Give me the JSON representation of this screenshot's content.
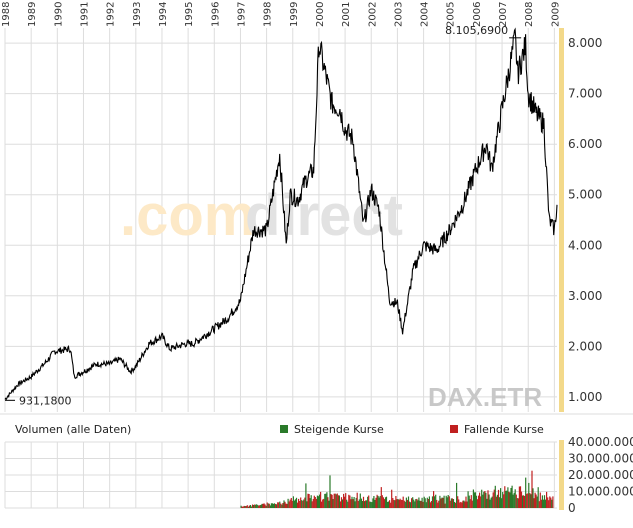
{
  "colors": {
    "price_line": "#000000",
    "grid": "#dddddd",
    "highlight_bar": "#f3d98a",
    "rising": "#2a7a2a",
    "falling": "#c02020",
    "watermark_orange": "#fde9c7",
    "watermark_grey": "#e2e2e2",
    "ticker_text": "#c8c8c8"
  },
  "watermark": {
    "part1": ".com",
    "part2": "direct"
  },
  "ticker": "DAX.ETR",
  "annotations": {
    "max_label": "8.105,6900",
    "min_label": "931,1800"
  },
  "volume_panel": {
    "title": "Volumen (alle Daten)",
    "legend_rising": "Steigende Kurse",
    "legend_falling": "Fallende Kurse"
  },
  "chart_data": [
    {
      "type": "line",
      "x_ticks": [
        "1988",
        "1989",
        "1990",
        "1991",
        "1992",
        "1993",
        "1994",
        "1995",
        "1996",
        "1997",
        "1998",
        "1999",
        "2000",
        "2001",
        "2002",
        "2003",
        "2004",
        "2005",
        "2006",
        "2007",
        "2008",
        "2009"
      ],
      "y_ticks": [
        "1.000",
        "2.000",
        "3.000",
        "4.000",
        "5.000",
        "6.000",
        "7.000",
        "8.000"
      ],
      "ylim": [
        700,
        8300
      ],
      "xlim": [
        1988.0,
        2009.1
      ],
      "grid": true,
      "series": [
        {
          "x": [
            1988.0,
            1988.5,
            1989.0,
            1989.5,
            1989.9,
            1990.5,
            1990.65,
            1991.0,
            1991.5,
            1992.0,
            1992.4,
            1992.8,
            1993.0,
            1993.5,
            1994.0,
            1994.3,
            1994.9,
            1995.2,
            1995.6,
            1996.0,
            1996.5,
            1997.0,
            1997.5,
            1998.0,
            1998.5,
            1998.75,
            1998.9,
            1999.2,
            1999.5,
            1999.8,
            2000.0,
            2000.2,
            2000.5,
            2000.8,
            2001.0,
            2001.3,
            2001.7,
            2002.0,
            2002.3,
            2002.7,
            2003.0,
            2003.2,
            2003.6,
            2004.0,
            2004.5,
            2005.0,
            2005.5,
            2006.0,
            2006.4,
            2006.6,
            2007.0,
            2007.5,
            2007.6,
            2007.9,
            2008.0,
            2008.3,
            2008.6,
            2008.8,
            2009.0,
            2009.1
          ],
          "y": [
            950,
            1250,
            1400,
            1650,
            1900,
            1950,
            1400,
            1500,
            1650,
            1650,
            1750,
            1500,
            1600,
            2050,
            2200,
            1950,
            2050,
            2050,
            2200,
            2350,
            2550,
            2900,
            4300,
            4300,
            5800,
            4000,
            5000,
            4900,
            5300,
            5500,
            8000,
            7500,
            6800,
            6700,
            6300,
            6100,
            4400,
            5100,
            4700,
            2900,
            2850,
            2300,
            3500,
            4000,
            3900,
            4300,
            4800,
            5500,
            6000,
            5500,
            6700,
            8100,
            7400,
            7950,
            7000,
            6600,
            6400,
            4500,
            4300,
            4800
          ]
        }
      ]
    },
    {
      "type": "bar",
      "title": "Volumen (alle Daten)",
      "y_ticks": [
        "0",
        "10.000.000",
        "20.000.000",
        "30.000.000",
        "40.000.000"
      ],
      "ylim": [
        0,
        40000000
      ],
      "series": [
        {
          "name": "Steigende Kurse",
          "x": [
            1997.0,
            1998.5,
            1999.0,
            1999.5,
            2000.0,
            2001.0,
            2002.0,
            2003.0,
            2004.0,
            2005.0,
            2006.0,
            2007.0,
            2008.0,
            2008.8
          ],
          "values": [
            1000000,
            3000000,
            6000000,
            7000000,
            8000000,
            7000000,
            6000000,
            5000000,
            5000000,
            6000000,
            8000000,
            10000000,
            11000000,
            6000000
          ]
        },
        {
          "name": "Fallende Kurse",
          "x": [
            1997.0,
            1998.5,
            1999.0,
            1999.5,
            2000.0,
            2001.0,
            2002.0,
            2003.0,
            2004.0,
            2005.0,
            2006.0,
            2007.0,
            2008.0,
            2008.8
          ],
          "values": [
            1000000,
            3000000,
            5000000,
            6000000,
            7000000,
            7000000,
            6000000,
            5000000,
            4000000,
            5000000,
            7000000,
            9000000,
            10000000,
            5000000
          ]
        }
      ]
    }
  ]
}
